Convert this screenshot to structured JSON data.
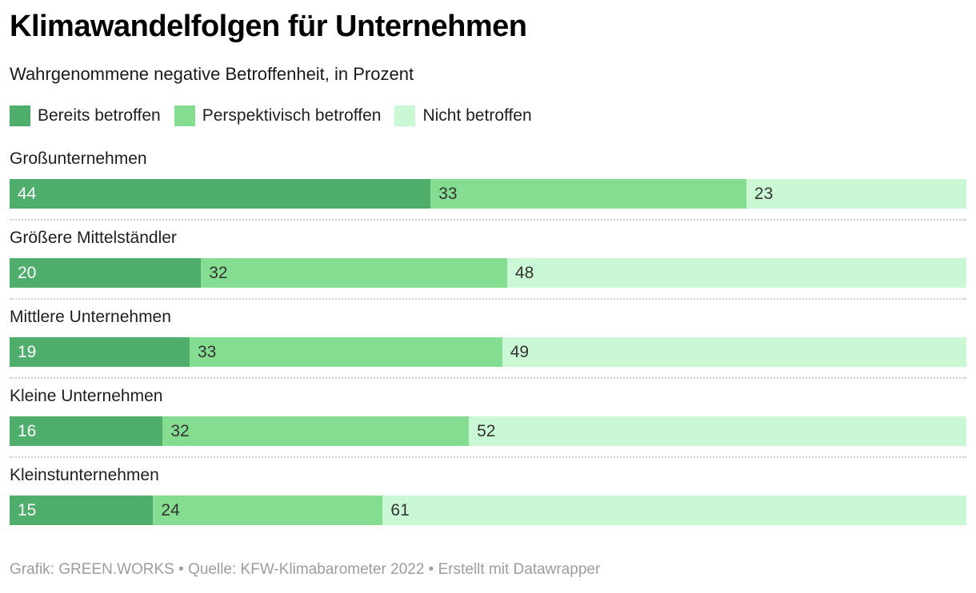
{
  "header": {
    "title": "Klimawandelfolgen für Unternehmen",
    "subtitle": "Wahrgenommene negative Betroffenheit, in Prozent"
  },
  "chart_data": {
    "type": "bar",
    "stacked": true,
    "orientation": "horizontal",
    "title": "Klimawandelfolgen für Unternehmen",
    "subtitle": "Wahrgenommene negative Betroffenheit, in Prozent",
    "unit": "percent",
    "xlim": [
      0,
      100
    ],
    "grid": false,
    "legend_position": "top",
    "value_labels": true,
    "categories": [
      "Großunternehmen",
      "Größere Mittelständler",
      "Mittlere Unternehmen",
      "Kleine Unternehmen",
      "Kleinstunternehmen"
    ],
    "series": [
      {
        "name": "Bereits betroffen",
        "color": "#4fae6b",
        "label_color": "#ffffff",
        "values": [
          44,
          20,
          19,
          16,
          15
        ]
      },
      {
        "name": "Perspektivisch betroffen",
        "color": "#85dd92",
        "label_color": "#333333",
        "values": [
          33,
          32,
          33,
          32,
          24
        ]
      },
      {
        "name": "Nicht betroffen",
        "color": "#cbf8d4",
        "label_color": "#333333",
        "values": [
          23,
          48,
          49,
          52,
          61
        ]
      }
    ]
  },
  "footer": {
    "text": "Grafik: GREEN.WORKS • Quelle: KFW-Klimabarometer 2022 • Erstellt mit Datawrapper"
  },
  "colors": {
    "background": "#ffffff",
    "title_text": "#000000",
    "body_text": "#1f1f1f",
    "separator": "#cccccc",
    "footer_text": "#9d9d9d"
  }
}
